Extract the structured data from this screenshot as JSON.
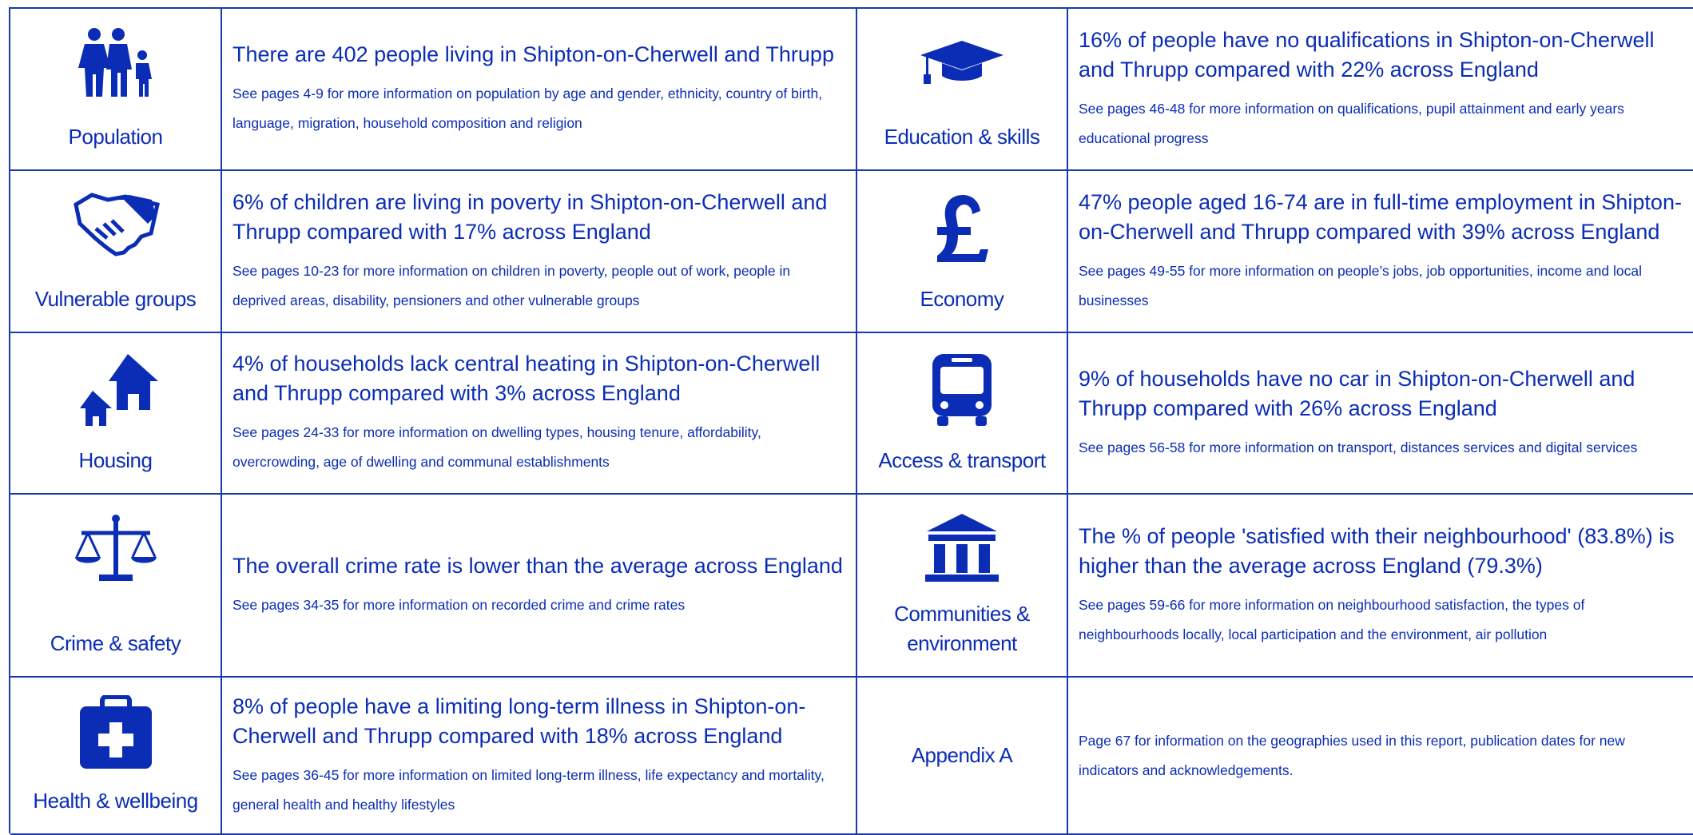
{
  "rows": [
    {
      "left": {
        "label": "Population",
        "headline": "There are 402 people living in Shipton-on-Cherwell and Thrupp",
        "detail": "See pages 4-9 for more information on population by age and gender, ethnicity, country of birth, language, migration, household composition and religion"
      },
      "right": {
        "label": "Education & skills",
        "headline": "16% of people have no qualifications in Shipton-on-Cherwell and Thrupp compared with 22% across England",
        "detail": "See pages 46-48 for more information on qualifications, pupil attainment and early years educational progress"
      }
    },
    {
      "left": {
        "label": "Vulnerable groups",
        "headline": "6% of children are living in poverty in Shipton-on-Cherwell and Thrupp compared with 17% across England",
        "detail": "See pages 10-23 for more information on children in poverty, people out of work, people in deprived areas, disability, pensioners and other vulnerable groups"
      },
      "right": {
        "label": "Economy",
        "headline": "47% people aged 16-74 are in full-time employment in Shipton-on-Cherwell and Thrupp compared with 39% across England",
        "detail": "See pages 49-55 for more information on people’s jobs, job opportunities, income and local businesses"
      }
    },
    {
      "left": {
        "label": "Housing",
        "headline": "4% of households lack central heating in Shipton-on-Cherwell and Thrupp compared with 3% across England",
        "detail": "See pages 24-33 for more information on dwelling types, housing tenure, affordability, overcrowding, age of dwelling and communal establishments"
      },
      "right": {
        "label": "Access & transport",
        "headline": "9% of households have no car in Shipton-on-Cherwell and Thrupp compared with 26% across England",
        "detail": "See pages 56-58 for more information on transport, distances services and digital services"
      }
    },
    {
      "left": {
        "label": "Crime & safety",
        "headline": "The overall crime rate is lower than the average across England",
        "detail": "See pages 34-35 for more information on recorded crime and crime rates"
      },
      "right": {
        "label": "Communities & environment",
        "headline": "The % of people 'satisfied with their neighbourhood' (83.8%) is higher than the average across England (79.3%)",
        "detail": "See pages 59-66 for more information on neighbourhood satisfaction, the types of neighbourhoods locally, local participation and the environment, air pollution"
      }
    },
    {
      "left": {
        "label": "Health & wellbeing",
        "headline": "8% of people have a limiting long-term illness in Shipton-on-Cherwell and Thrupp compared with 18% across England",
        "detail": "See pages 36-45 for more information on limited long-term illness, life expectancy and mortality, general health and healthy lifestyles"
      },
      "right": {
        "label": "Appendix A",
        "detail": "Page 67 for information on the geographies used in this report, publication dates for new indicators and acknowledgements."
      }
    }
  ]
}
